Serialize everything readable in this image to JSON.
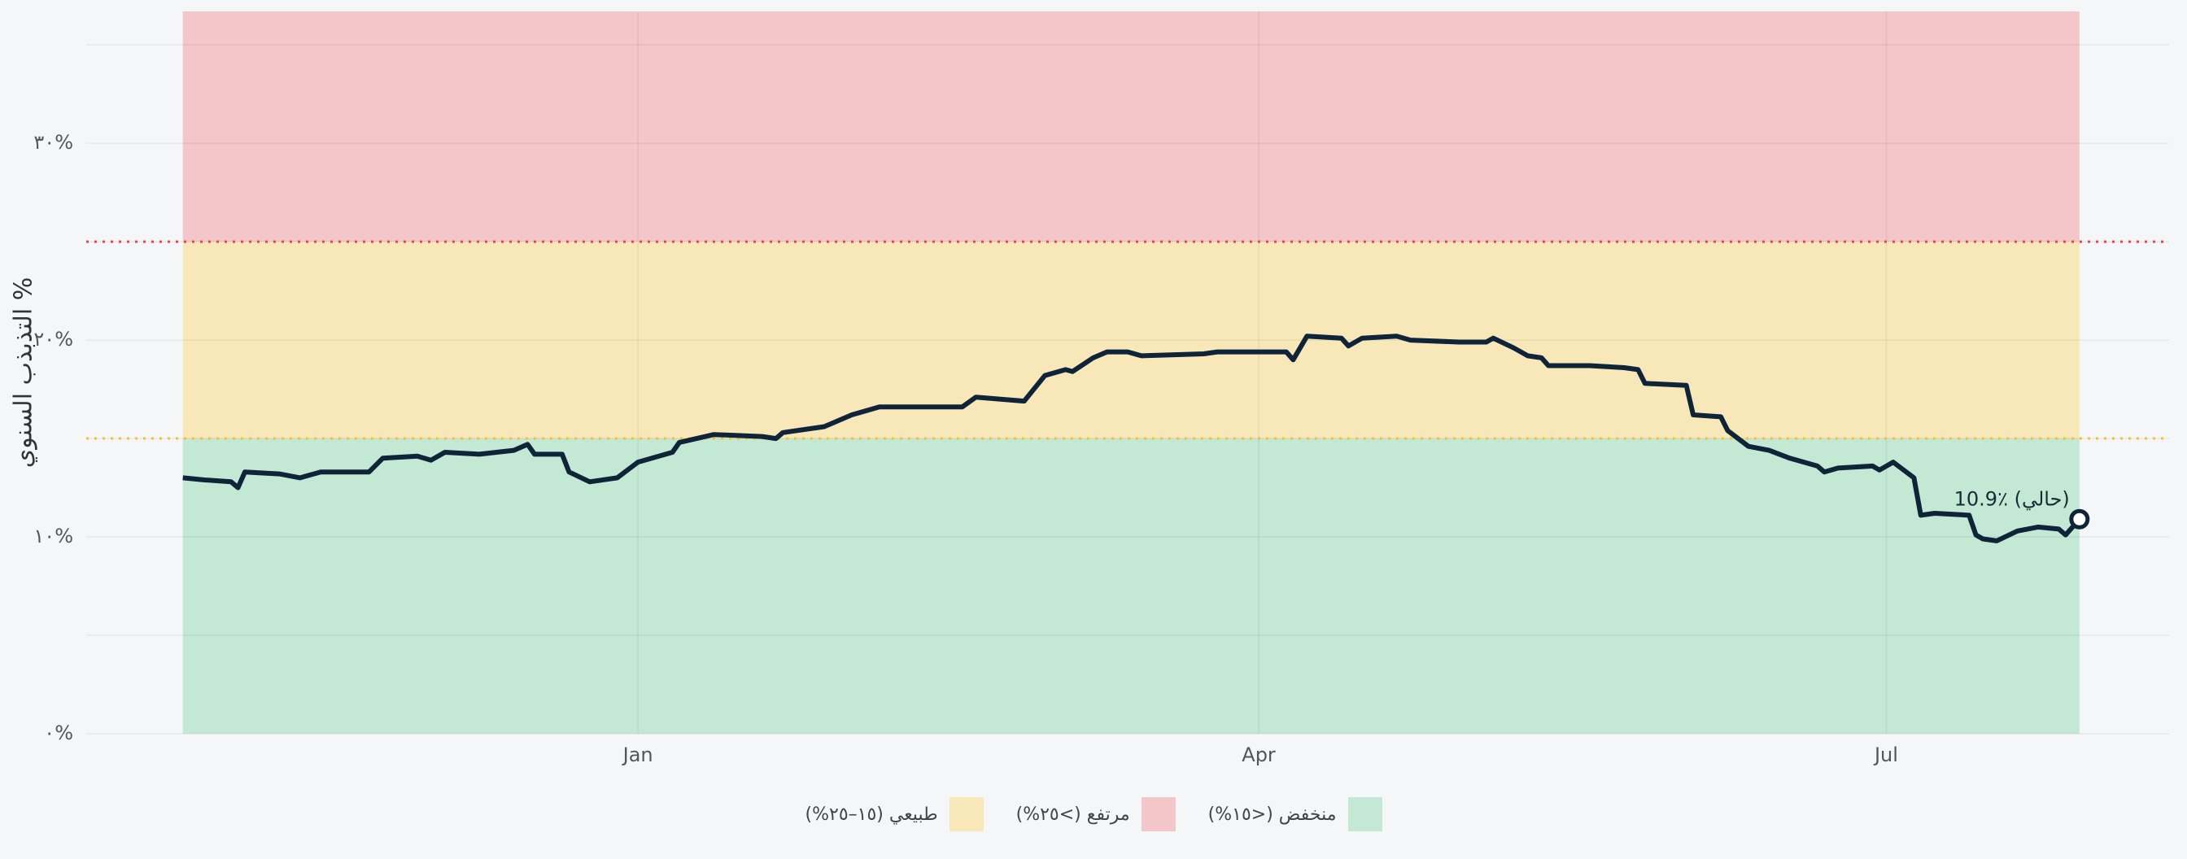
{
  "chart_data": {
    "type": "line",
    "y_label": "التذبذب السنوي %",
    "annotation": "10.9٪ (حالي)",
    "x": [
      -66,
      -63,
      -59,
      -58,
      -57,
      -52,
      -49,
      -46,
      -42,
      -39,
      -37,
      -32,
      -30,
      -28,
      -23,
      -18,
      -16,
      -15,
      -11,
      -10,
      -7,
      -3,
      0,
      5,
      6,
      11,
      18,
      20,
      21,
      27,
      31,
      35,
      43,
      47,
      49,
      56,
      59,
      62,
      63,
      66,
      68,
      71,
      73,
      82,
      84,
      91,
      94,
      95,
      97,
      102,
      103,
      105,
      110,
      112,
      119,
      123,
      124,
      127,
      129,
      131,
      132,
      138,
      143,
      145,
      146,
      152,
      153,
      157,
      158,
      161,
      164,
      167,
      171,
      172,
      174,
      179,
      180,
      182,
      185,
      186,
      188,
      193,
      194,
      195,
      197,
      200,
      203,
      206,
      207,
      209
    ],
    "values": [
      13.0,
      12.9,
      12.8,
      12.5,
      13.3,
      13.2,
      13.0,
      13.3,
      13.3,
      13.3,
      14.0,
      14.1,
      13.9,
      14.3,
      14.2,
      14.4,
      14.7,
      14.2,
      14.2,
      13.3,
      12.8,
      13.0,
      13.8,
      14.3,
      14.8,
      15.2,
      15.1,
      15.0,
      15.3,
      15.6,
      16.2,
      16.6,
      16.6,
      16.6,
      17.1,
      16.9,
      18.2,
      18.5,
      18.4,
      19.1,
      19.4,
      19.4,
      19.2,
      19.3,
      19.4,
      19.4,
      19.4,
      19.0,
      20.2,
      20.1,
      19.7,
      20.1,
      20.2,
      20.0,
      19.9,
      19.9,
      20.1,
      19.6,
      19.2,
      19.1,
      18.7,
      18.7,
      18.6,
      18.5,
      17.8,
      17.7,
      16.2,
      16.1,
      15.4,
      14.6,
      14.4,
      14.0,
      13.6,
      13.3,
      13.5,
      13.6,
      13.4,
      13.8,
      13.0,
      11.1,
      11.2,
      11.1,
      10.1,
      9.9,
      9.8,
      10.3,
      10.5,
      10.4,
      10.1,
      10.9
    ],
    "color": "#0f2438",
    "xlim": [
      -80,
      222
    ],
    "ylim": [
      0,
      36.7
    ],
    "xticks": [
      {
        "value": 0,
        "label": "Jan"
      },
      {
        "value": 90,
        "label": "Apr"
      },
      {
        "value": 181,
        "label": "Jul"
      }
    ],
    "yticks": [
      {
        "value": 0,
        "label": "٠%"
      },
      {
        "value": 10,
        "label": "١٠%"
      },
      {
        "value": 20,
        "label": "٢٠%"
      },
      {
        "value": 30,
        "label": "٣٠%"
      }
    ],
    "minor_yticks": [
      5,
      15,
      25,
      35
    ],
    "grid": true,
    "bands": [
      {
        "name": "منخفض (<١٥%)",
        "from": 0,
        "to": 15,
        "color": "#c3e8d3"
      },
      {
        "name": "مرتفع (>٢٥%)",
        "from": 25,
        "to": 36.7,
        "color": "#f3c6c9"
      },
      {
        "name": "طبيعي (١٥–٢٥%)",
        "from": 15,
        "to": 25,
        "color": "#f8e8b9"
      }
    ],
    "thresholds": [
      {
        "value": 15,
        "color": "#f2c230"
      },
      {
        "value": 25,
        "color": "#e8454d"
      }
    ],
    "legend": "bottom"
  }
}
